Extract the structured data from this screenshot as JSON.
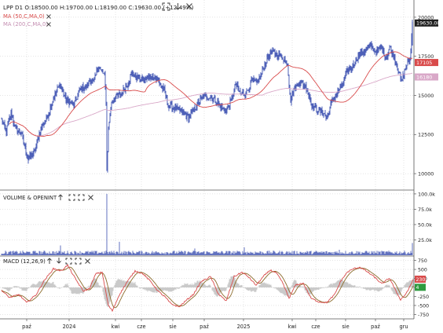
{
  "header": {
    "symbol": "LPP",
    "timeframe": "D1",
    "open": "O:18500.00",
    "high": "H:19700.00",
    "low": "L:18190.00",
    "close": "C:19630.00",
    "change": "(+12.49%)",
    "ma50_label": "MA (50,C,MA,0)",
    "ma200_label": "MA (200,C,MA,0)",
    "icons": [
      "restore-icon",
      "download-icon",
      "close-icon"
    ]
  },
  "chart_data": [
    {
      "type": "line",
      "panel": "price",
      "ylim": [
        9000,
        21000
      ],
      "yticks": [
        "20000",
        "17500",
        "15000",
        "12500",
        "10000"
      ],
      "ytick_values": [
        20000,
        17500,
        15000,
        12500,
        10000
      ],
      "price_tags": [
        {
          "text": "19630.00",
          "value": 19630,
          "color": "#1f1f1f"
        },
        {
          "text": "17105",
          "value": 17105,
          "color": "#d94b4b"
        },
        {
          "text": "16180",
          "value": 16180,
          "color": "#d9a8c8"
        }
      ],
      "series": [
        {
          "name": "MA (50,C,MA,0)",
          "color": "#d94b4b"
        },
        {
          "name": "MA (200,C,MA,0)",
          "color": "#d9a8c8"
        }
      ],
      "bar_color": "#3a4fb0",
      "keypoints": [
        [
          0,
          13400
        ],
        [
          6,
          12700
        ],
        [
          12,
          13900
        ],
        [
          18,
          12800
        ],
        [
          25,
          12600
        ],
        [
          34,
          10900
        ],
        [
          42,
          11400
        ],
        [
          50,
          12900
        ],
        [
          58,
          13600
        ],
        [
          66,
          14800
        ],
        [
          74,
          15700
        ],
        [
          82,
          14700
        ],
        [
          92,
          14400
        ],
        [
          100,
          15400
        ],
        [
          108,
          15600
        ],
        [
          113,
          16000
        ],
        [
          118,
          15900
        ],
        [
          123,
          16900
        ],
        [
          127,
          16500
        ],
        [
          131,
          16300
        ],
        [
          133,
          14600
        ],
        [
          134,
          10200
        ],
        [
          136,
          12900
        ],
        [
          140,
          14600
        ],
        [
          146,
          14900
        ],
        [
          152,
          15100
        ],
        [
          160,
          15700
        ],
        [
          166,
          16400
        ],
        [
          172,
          16200
        ],
        [
          178,
          16000
        ],
        [
          186,
          16100
        ],
        [
          194,
          16200
        ],
        [
          200,
          15900
        ],
        [
          207,
          15300
        ],
        [
          212,
          14400
        ],
        [
          220,
          14200
        ],
        [
          228,
          14000
        ],
        [
          238,
          13600
        ],
        [
          244,
          14000
        ],
        [
          250,
          14500
        ],
        [
          258,
          15000
        ],
        [
          266,
          14900
        ],
        [
          272,
          14700
        ],
        [
          280,
          14200
        ],
        [
          286,
          14000
        ],
        [
          292,
          14600
        ],
        [
          298,
          15700
        ],
        [
          304,
          15100
        ],
        [
          312,
          15200
        ],
        [
          318,
          15900
        ],
        [
          325,
          15800
        ],
        [
          331,
          16400
        ],
        [
          337,
          17200
        ],
        [
          343,
          17800
        ],
        [
          350,
          17600
        ],
        [
          357,
          17500
        ],
        [
          364,
          17000
        ],
        [
          368,
          14700
        ],
        [
          372,
          15400
        ],
        [
          380,
          15900
        ],
        [
          388,
          15500
        ],
        [
          396,
          14300
        ],
        [
          404,
          14000
        ],
        [
          410,
          13900
        ],
        [
          414,
          13500
        ],
        [
          420,
          14500
        ],
        [
          428,
          15200
        ],
        [
          434,
          15700
        ],
        [
          440,
          16500
        ],
        [
          446,
          16800
        ],
        [
          452,
          17400
        ],
        [
          458,
          17700
        ],
        [
          464,
          17900
        ],
        [
          470,
          18200
        ],
        [
          476,
          17800
        ],
        [
          484,
          18000
        ],
        [
          490,
          17400
        ],
        [
          494,
          18100
        ],
        [
          498,
          17600
        ],
        [
          502,
          17200
        ],
        [
          506,
          16500
        ],
        [
          509,
          15800
        ],
        [
          512,
          16400
        ],
        [
          516,
          17000
        ],
        [
          520,
          17200
        ],
        [
          523,
          19630
        ]
      ]
    },
    {
      "type": "bar",
      "panel": "volume",
      "title": "VOLUME & OPENINT",
      "ylim": [
        0,
        105000
      ],
      "yticks": [
        "100.0k",
        "75.0k",
        "50.0k",
        "25.0k"
      ],
      "ytick_values": [
        100000,
        75000,
        50000,
        25000
      ],
      "bar_color": "#3a4fb0",
      "spikes": [
        {
          "x": 134,
          "value": 100000
        },
        {
          "x": 75,
          "value": 16000
        },
        {
          "x": 150,
          "value": 22000
        },
        {
          "x": 246,
          "value": 11000
        },
        {
          "x": 309,
          "value": 13000
        },
        {
          "x": 430,
          "value": 9000
        },
        {
          "x": 523,
          "value": 20000
        }
      ],
      "base_value": 5000
    },
    {
      "type": "line",
      "panel": "macd",
      "title": "MACD (12,26,9)",
      "ylim": [
        -850,
        850
      ],
      "yticks": [
        "750",
        "500",
        "250",
        "0",
        "-250",
        "-500",
        "-750"
      ],
      "ytick_values": [
        750,
        500,
        250,
        0,
        -250,
        -500,
        -750
      ],
      "value_tags": [
        {
          "text": "230",
          "value": 230,
          "color": "#d94b4b"
        },
        {
          "text": "4",
          "value": 4,
          "color": "#2e9b3f"
        }
      ],
      "series": [
        {
          "name": "MACD",
          "color": "#d94b4b"
        },
        {
          "name": "Signal",
          "color": "#8a6a2a"
        }
      ],
      "keypoints": [
        [
          0,
          -80
        ],
        [
          10,
          -280
        ],
        [
          22,
          -200
        ],
        [
          32,
          -420
        ],
        [
          44,
          -200
        ],
        [
          54,
          180
        ],
        [
          66,
          520
        ],
        [
          76,
          460
        ],
        [
          84,
          620
        ],
        [
          94,
          240
        ],
        [
          104,
          -100
        ],
        [
          112,
          -30
        ],
        [
          120,
          380
        ],
        [
          128,
          420
        ],
        [
          136,
          -500
        ],
        [
          141,
          -650
        ],
        [
          150,
          -200
        ],
        [
          160,
          160
        ],
        [
          170,
          460
        ],
        [
          180,
          380
        ],
        [
          190,
          160
        ],
        [
          200,
          -120
        ],
        [
          208,
          -260
        ],
        [
          216,
          -460
        ],
        [
          226,
          -540
        ],
        [
          236,
          -340
        ],
        [
          244,
          -200
        ],
        [
          254,
          160
        ],
        [
          266,
          300
        ],
        [
          276,
          -180
        ],
        [
          286,
          -380
        ],
        [
          296,
          300
        ],
        [
          306,
          420
        ],
        [
          314,
          300
        ],
        [
          324,
          60
        ],
        [
          334,
          320
        ],
        [
          342,
          480
        ],
        [
          350,
          400
        ],
        [
          358,
          120
        ],
        [
          366,
          -300
        ],
        [
          374,
          60
        ],
        [
          384,
          120
        ],
        [
          394,
          -300
        ],
        [
          404,
          -400
        ],
        [
          414,
          -420
        ],
        [
          424,
          -200
        ],
        [
          432,
          180
        ],
        [
          440,
          420
        ],
        [
          448,
          520
        ],
        [
          456,
          560
        ],
        [
          464,
          460
        ],
        [
          474,
          300
        ],
        [
          484,
          100
        ],
        [
          494,
          260
        ],
        [
          502,
          -100
        ],
        [
          508,
          -340
        ],
        [
          514,
          -200
        ],
        [
          520,
          20
        ],
        [
          524,
          230
        ]
      ]
    }
  ],
  "x_axis": {
    "labels": [
      "paź",
      "2024",
      "kwi",
      "cze",
      "sie",
      "paź",
      "2025",
      "kwi",
      "cze",
      "sie",
      "paź",
      "gru"
    ],
    "label_days": [
      32,
      86,
      145,
      178,
      218,
      258,
      308,
      370,
      400,
      438,
      476,
      512
    ]
  },
  "colors": {
    "axis": "#555555",
    "grid": "#c8c8c8",
    "text": "#222222",
    "ma50": "#d94b4b",
    "ma200": "#d9a8c8",
    "bars": "#3a4fb0",
    "macd_hist": "#bdbdbd"
  }
}
